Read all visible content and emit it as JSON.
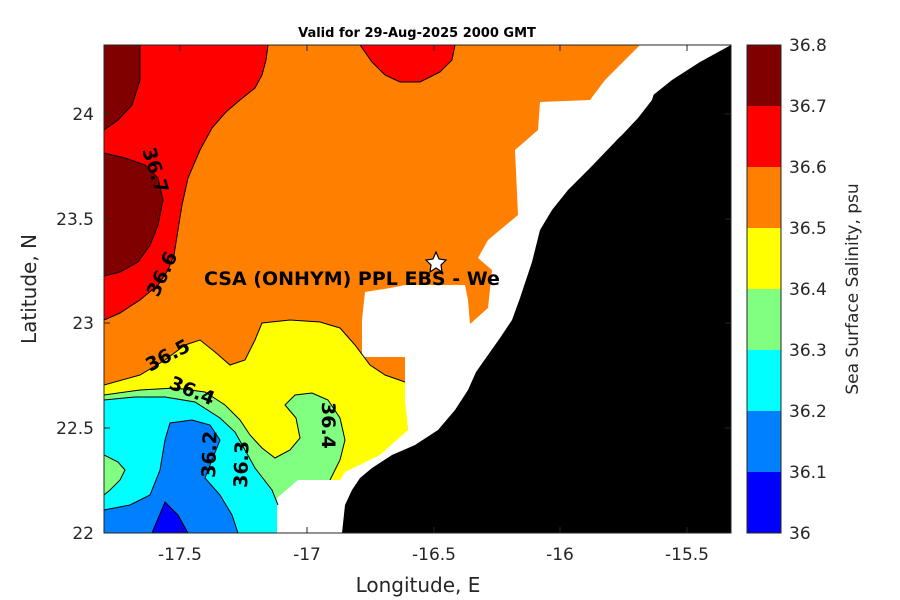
{
  "title": "Valid for 29-Aug-2025 2000 GMT",
  "axes": {
    "x_label": "Longitude, E",
    "y_label": "Latitude, N",
    "x_ticks": [
      "-17.5",
      "-17",
      "-16.5",
      "-16",
      "-15.5"
    ],
    "y_ticks": [
      "24",
      "23.5",
      "23",
      "22.5",
      "22"
    ],
    "x_range": [
      -17.78,
      -15.35
    ],
    "y_range": [
      22.0,
      24.35
    ]
  },
  "colorbar": {
    "label": "Sea Surface Salinity, psu",
    "ticks": [
      "36.8",
      "36.7",
      "36.6",
      "36.5",
      "36.4",
      "36.3",
      "36.2",
      "36.1",
      "36"
    ],
    "levels": [
      {
        "range": "36.7-36.8",
        "color": "#800000"
      },
      {
        "range": "36.6-36.7",
        "color": "#ff0000"
      },
      {
        "range": "36.5-36.6",
        "color": "#ff8000"
      },
      {
        "range": "36.4-36.5",
        "color": "#ffff00"
      },
      {
        "range": "36.3-36.4",
        "color": "#80ff80"
      },
      {
        "range": "36.2-36.3",
        "color": "#00ffff"
      },
      {
        "range": "36.1-36.2",
        "color": "#0080ff"
      },
      {
        "range": "36.0-36.1",
        "color": "#0000ff"
      }
    ]
  },
  "contour_labels": [
    "36.7",
    "36.6",
    "36.5",
    "36.4",
    "36.4",
    "36.2",
    "36.3"
  ],
  "site": {
    "label": "CSA (ONHYM) PPL EBS  - We",
    "marker": "star-icon",
    "lon": -16.48,
    "lat": 23.29
  },
  "colors": {
    "land": "#000000",
    "no_data": "#ffffff"
  }
}
